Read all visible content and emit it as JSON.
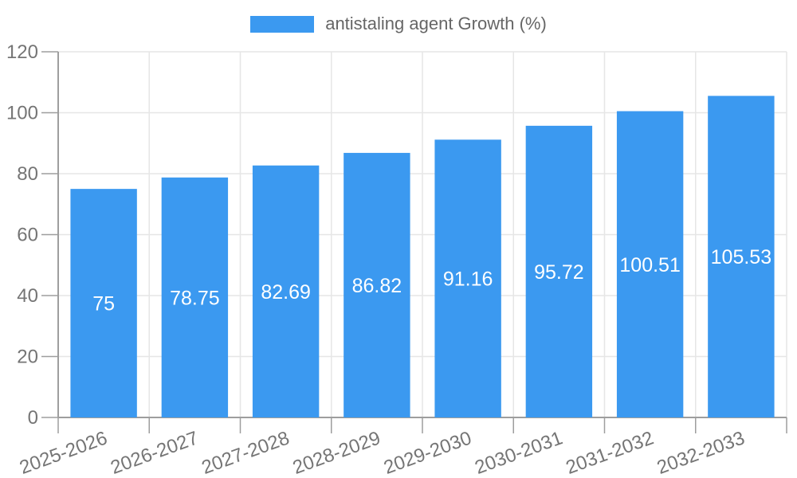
{
  "legend": {
    "label": "antistaling agent Growth (%)"
  },
  "colors": {
    "bar": "#3B99F0",
    "grid": "#E6E6E6",
    "axis": "#9E9E9E",
    "tick_text": "#757575",
    "legend_text": "#666666",
    "bar_label": "#FFFFFF",
    "background": "#FFFFFF"
  },
  "chart_data": {
    "type": "bar",
    "title": "antistaling agent Growth (%)",
    "categories": [
      "2025-2026",
      "2026-2027",
      "2027-2028",
      "2028-2029",
      "2029-2030",
      "2030-2031",
      "2031-2032",
      "2032-2033"
    ],
    "values": [
      75,
      78.75,
      82.69,
      86.82,
      91.16,
      95.72,
      100.51,
      105.53
    ],
    "value_labels": [
      "75",
      "78.75",
      "82.69",
      "86.82",
      "91.16",
      "95.72",
      "100.51",
      "105.53"
    ],
    "xlabel": "",
    "ylabel": "",
    "ylim": [
      0,
      120
    ],
    "yticks": [
      0,
      20,
      40,
      60,
      80,
      100,
      120
    ],
    "grid": true,
    "legend_position": "top",
    "x_label_rotation_deg": -20
  }
}
